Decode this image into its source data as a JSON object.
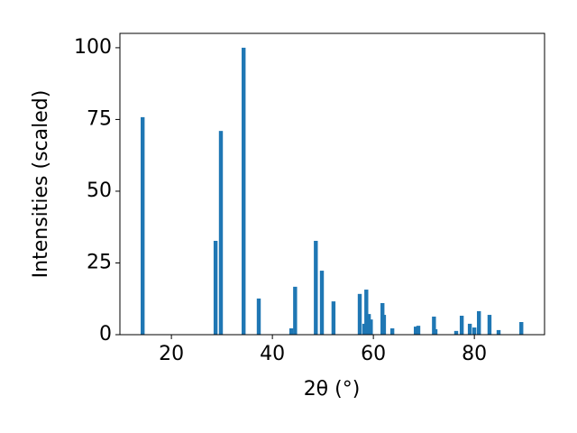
{
  "chart_data": {
    "type": "bar",
    "x_label": "2θ (°)",
    "y_label": "Intensities (scaled)",
    "x": [
      14.3,
      28.75,
      29.8,
      34.3,
      37.3,
      43.75,
      44.5,
      48.6,
      49.8,
      52.1,
      57.3,
      58.2,
      58.6,
      59.1,
      59.5,
      61.8,
      62.1,
      63.75,
      68.4,
      68.9,
      72.0,
      72.3,
      76.4,
      77.5,
      79.1,
      80.0,
      80.9,
      83.0,
      84.8,
      89.3
    ],
    "values": [
      75.8,
      32.7,
      71,
      100,
      12.6,
      2.2,
      16.7,
      32.7,
      22.3,
      11.6,
      14.2,
      3.8,
      15.7,
      7.2,
      5.3,
      11,
      6.9,
      2.2,
      2.8,
      3.1,
      6.3,
      1.9,
      1.3,
      6.6,
      3.8,
      2.5,
      8.2,
      6.9,
      1.6,
      4.4
    ],
    "color": "#1f77b4",
    "xlim": [
      9.8,
      93.9
    ],
    "xticks": [
      20,
      40,
      60,
      80
    ],
    "ylim": [
      0,
      105
    ],
    "yticks": [
      0,
      25,
      50,
      75,
      100
    ],
    "grid": false
  }
}
